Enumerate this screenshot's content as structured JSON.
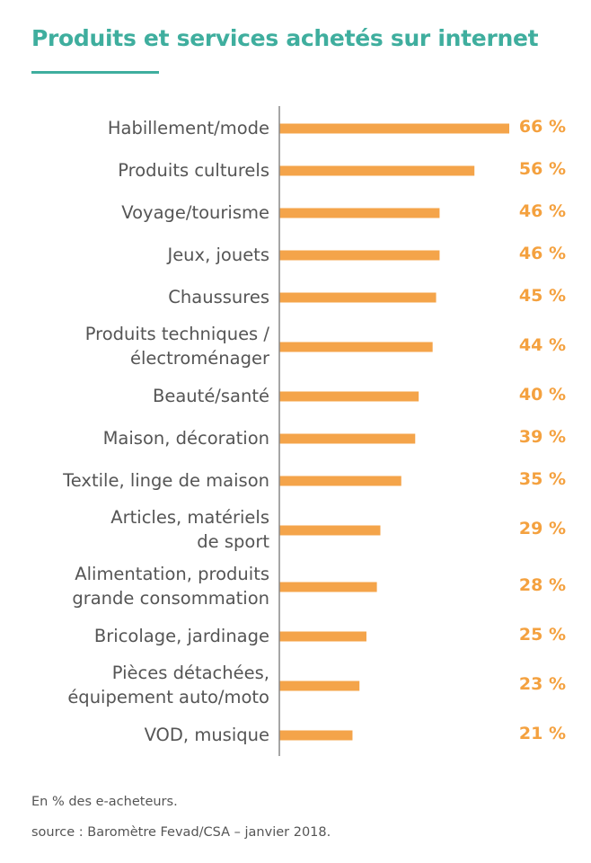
{
  "title": "Produits et services achetés sur internet",
  "chart_data": {
    "type": "bar",
    "orientation": "horizontal",
    "color": "#f4a44a",
    "categories": [
      "Habillement/mode",
      "Produits culturels",
      "Voyage/tourisme",
      "Jeux, jouets",
      "Chaussures",
      "Produits techniques /\nélectroménager",
      "Beauté/santé",
      "Maison, décoration",
      "Textile, linge de maison",
      "Articles, matériels\nde sport",
      "Alimentation, produits\ngrande consommation",
      "Bricolage, jardinage",
      "Pièces détachées,\néquipement auto/moto",
      "VOD, musique"
    ],
    "values": [
      66,
      56,
      46,
      46,
      45,
      44,
      40,
      39,
      35,
      29,
      28,
      25,
      23,
      21
    ],
    "value_labels": [
      "66 %",
      "56 %",
      "46 %",
      "46 %",
      "45 %",
      "44 %",
      "40 %",
      "39 %",
      "35 %",
      "29 %",
      "28 %",
      "25 %",
      "23 %",
      "21 %"
    ]
  },
  "notes": [
    "En % des e-acheteurs.",
    "source : Baromètre Fevad/CSA – janvier 2018."
  ]
}
